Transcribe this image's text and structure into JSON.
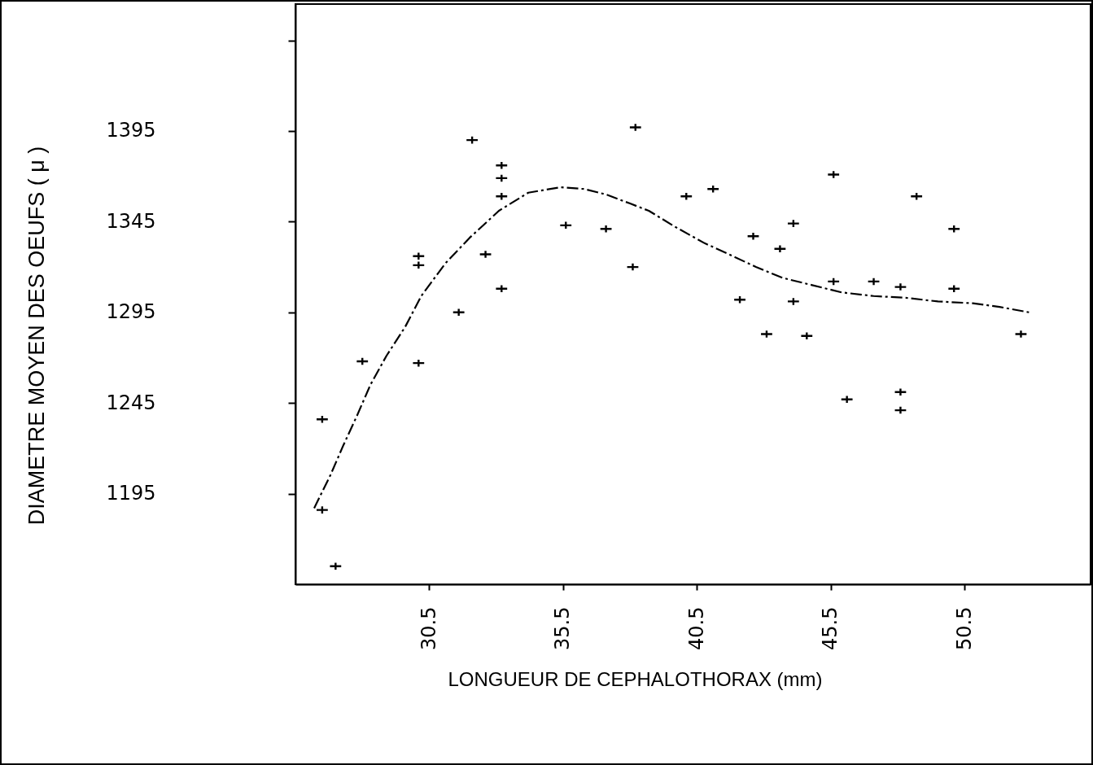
{
  "chart_data": {
    "type": "scatter",
    "xlabel": "LONGUEUR DE CEPHALOTHORAX (mm)",
    "ylabel": "DIAMETRE MOYEN DES OEUFS ( μ )",
    "xlim": [
      25.5,
      55.2
    ],
    "xticks": [
      30.5,
      35.5,
      40.5,
      45.5,
      50.5
    ],
    "ylim": [
      1145,
      1465
    ],
    "yticks": [
      1195,
      1245,
      1295,
      1345,
      1395,
      {
        "value": 1445,
        "label": null
      }
    ],
    "series": [
      {
        "color": "#000000",
        "marker": "cross",
        "x": [
          26.5,
          26.5,
          27.0,
          28.0,
          30.1,
          30.1,
          30.1,
          31.6,
          32.1,
          32.6,
          33.2,
          33.2,
          33.2,
          33.2,
          35.6,
          37.1,
          38.2,
          38.1,
          40.1,
          41.1,
          42.1,
          42.6,
          43.1,
          43.6,
          44.1,
          44.1,
          44.6,
          45.6,
          45.6,
          46.1,
          47.1,
          48.1,
          48.1,
          48.1,
          48.7,
          50.1,
          50.1,
          52.6
        ],
        "values": [
          1236,
          1186,
          1155,
          1268,
          1326,
          1321,
          1267,
          1295,
          1390,
          1327,
          1376,
          1369,
          1359,
          1308,
          1343,
          1341,
          1397,
          1320,
          1359,
          1363,
          1302,
          1337,
          1283,
          1330,
          1344,
          1301,
          1282,
          1371,
          1312,
          1247,
          1312,
          1309,
          1251,
          1241,
          1359,
          1341,
          1308,
          1283
        ]
      },
      {
        "type": "line",
        "color": "#000000",
        "line_style": "dashed",
        "marker": "none",
        "x": [
          26.2,
          26.8,
          27.3,
          27.8,
          28.3,
          28.9,
          29.6,
          30.2,
          31.1,
          32.0,
          33.1,
          34.2,
          35.4,
          36.3,
          37.1,
          38.0,
          38.7,
          39.7,
          40.8,
          41.7,
          42.7,
          43.7,
          44.8,
          45.9,
          47.1,
          48.3,
          49.5,
          50.8,
          51.8,
          52.9
        ],
        "values": [
          1187,
          1205,
          1222,
          1238,
          1255,
          1271,
          1287,
          1304,
          1322,
          1336,
          1351,
          1361,
          1364,
          1363,
          1360,
          1355,
          1351,
          1342,
          1333,
          1327,
          1320,
          1314,
          1310,
          1306,
          1304,
          1303,
          1301,
          1300,
          1298,
          1295
        ]
      }
    ]
  }
}
